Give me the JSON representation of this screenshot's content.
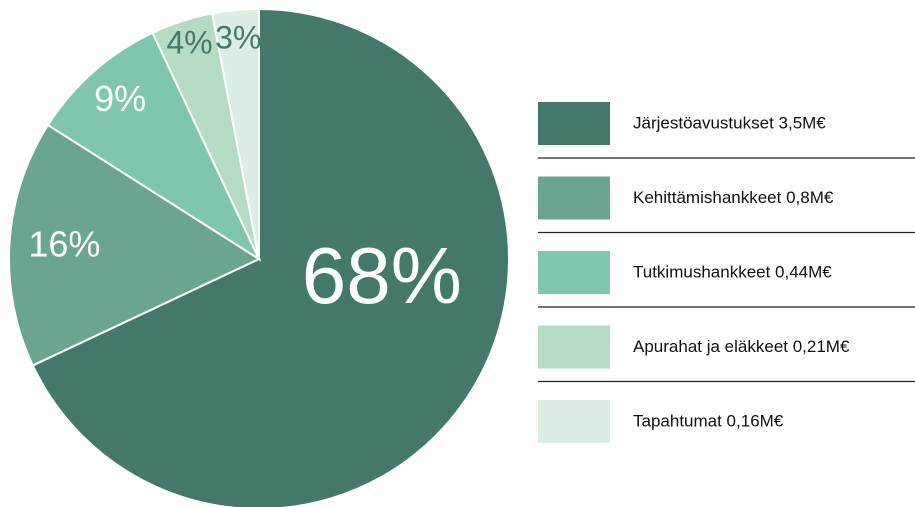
{
  "chart_data": {
    "type": "pie",
    "categories": [
      "Järjestöavustukset  3,5M€",
      "Kehittämishankkeet 0,8M€",
      "Tutkimushankkeet 0,44M€",
      "Apurahat ja eläkkeet 0,21M€",
      "Tapahtumat  0,16M€"
    ],
    "values": [
      68,
      16,
      9,
      4,
      3
    ],
    "value_labels": [
      "68%",
      "16%",
      "9%",
      "4%",
      "3%"
    ],
    "colors": [
      "#44786a",
      "#6aa58f",
      "#7fc6ad",
      "#b5dbc4",
      "#dcede3"
    ],
    "legend": "right"
  }
}
